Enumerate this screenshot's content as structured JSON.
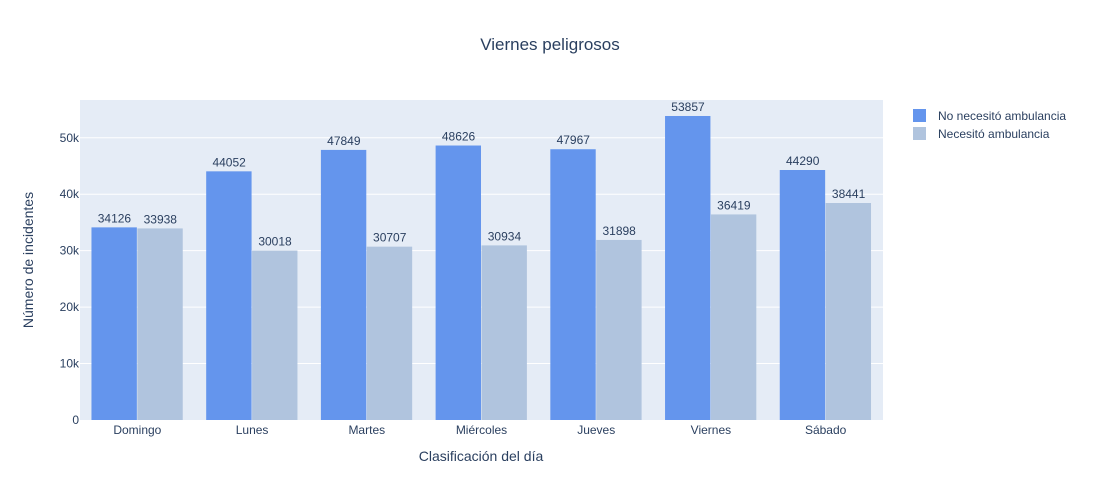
{
  "chart_data": {
    "type": "bar",
    "title": "Viernes peligrosos",
    "xlabel": "Clasificación del día",
    "ylabel": "Número de incidentes",
    "categories": [
      "Domingo",
      "Lunes",
      "Martes",
      "Miércoles",
      "Jueves",
      "Viernes",
      "Sábado"
    ],
    "series": [
      {
        "name": "No necesitó ambulancia",
        "color": "#6495ED",
        "values": [
          34126,
          44052,
          47849,
          48626,
          47967,
          53857,
          44290
        ]
      },
      {
        "name": "Necesitó ambulancia",
        "color": "#B0C4DE",
        "values": [
          33938,
          30018,
          30707,
          30934,
          31898,
          36419,
          38441
        ]
      }
    ],
    "ylim": [
      0,
      56690
    ],
    "yticks": [
      0,
      10000,
      20000,
      30000,
      40000,
      50000
    ],
    "ytick_labels": [
      "0",
      "10k",
      "20k",
      "30k",
      "40k",
      "50k"
    ],
    "grid": true,
    "legend_position": "top-right",
    "plot_background": "#E5ECF6"
  }
}
